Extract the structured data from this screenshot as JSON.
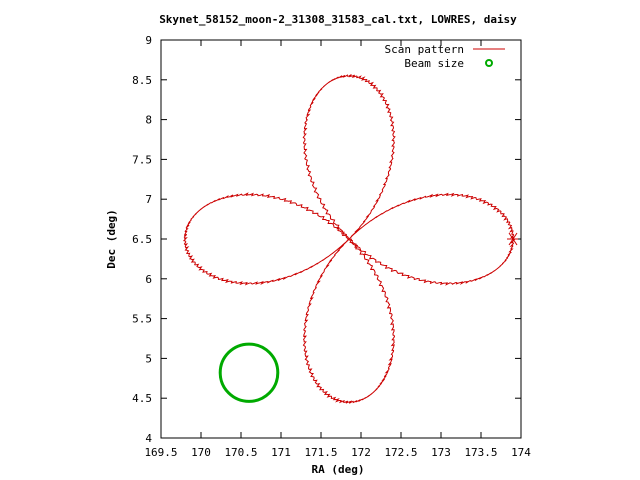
{
  "chart_data": {
    "type": "line",
    "title": "Skynet_58152_moon-2_31308_31583_cal.txt, LOWRES, daisy",
    "xlabel": "RA (deg)",
    "ylabel": "Dec (deg)",
    "xlim": [
      169.5,
      174
    ],
    "ylim": [
      4,
      9
    ],
    "xticks": [
      "169.5",
      "170",
      "170.5",
      "171",
      "171.5",
      "172",
      "172.5",
      "173",
      "173.5",
      "174"
    ],
    "yticks": [
      "4",
      "4.5",
      "5",
      "5.5",
      "6",
      "6.5",
      "7",
      "7.5",
      "8",
      "8.5",
      "9"
    ],
    "grid": false,
    "legend_position": "top-right",
    "series": [
      {
        "name": "Scan pattern",
        "color": "#cc0000",
        "shape": "four-petal daisy",
        "center": [
          171.85,
          6.5
        ],
        "petal_extent_ra": 2.05,
        "petal_extent_dec": 2.05,
        "east_petal_max_ra": 173.9,
        "west_petal_min_ra": 169.8,
        "north_petal_max_dec": 8.53,
        "south_petal_min_dec": 4.46
      },
      {
        "name": "Beam size",
        "color": "#00aa00",
        "shape": "circle",
        "center": [
          170.6,
          4.82
        ],
        "radius_deg": 0.36
      }
    ]
  },
  "legend": {
    "scan_label": "Scan pattern",
    "beam_label": "Beam size"
  }
}
